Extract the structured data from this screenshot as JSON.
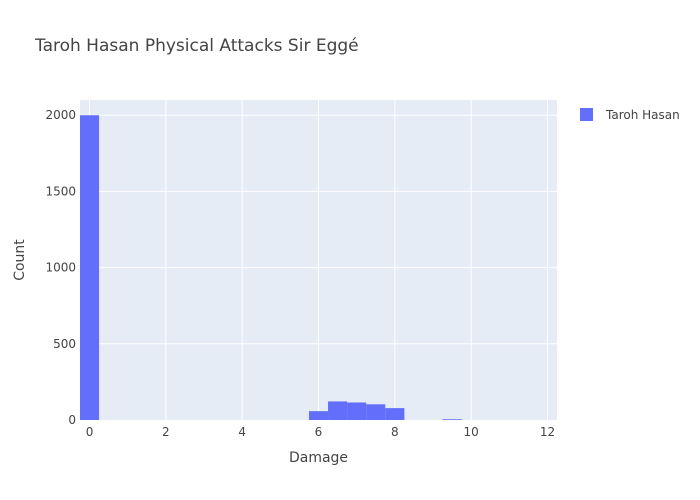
{
  "chart_data": {
    "type": "bar",
    "title": "Taroh Hasan Physical Attacks Sir Eggé",
    "xlabel": "Damage",
    "ylabel": "Count",
    "xlim": [
      -0.25,
      12.25
    ],
    "ylim": [
      0,
      2100
    ],
    "x_ticks": [
      0,
      2,
      4,
      6,
      8,
      10,
      12
    ],
    "y_ticks": [
      0,
      500,
      1000,
      1500,
      2000
    ],
    "grid": true,
    "legend_position": "top-right",
    "bin_width": 0.5,
    "series": [
      {
        "name": "Taroh Hasan",
        "color": "#636efa",
        "bins": [
          {
            "x0": -0.25,
            "x1": 0.25,
            "count": 2000
          },
          {
            "x0": 5.75,
            "x1": 6.25,
            "count": 58
          },
          {
            "x0": 6.25,
            "x1": 6.75,
            "count": 122
          },
          {
            "x0": 6.75,
            "x1": 7.25,
            "count": 115
          },
          {
            "x0": 7.25,
            "x1": 7.75,
            "count": 103
          },
          {
            "x0": 7.75,
            "x1": 8.25,
            "count": 78
          },
          {
            "x0": 9.25,
            "x1": 9.75,
            "count": 5
          }
        ]
      }
    ]
  },
  "colors": {
    "plot_background": "#e5ecf6",
    "grid": "#ffffff",
    "bar": "#636efa"
  }
}
